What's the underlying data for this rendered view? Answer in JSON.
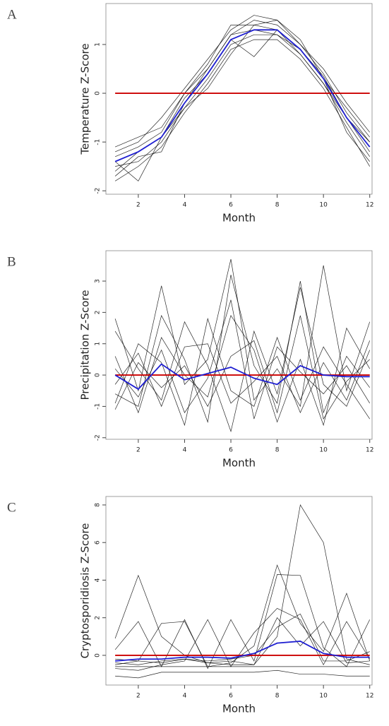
{
  "chart_data": [
    {
      "type": "line",
      "label": "A",
      "xlabel": "Month",
      "ylabel": "Temperature Z-Score",
      "x": [
        1,
        2,
        3,
        4,
        5,
        6,
        7,
        8,
        9,
        10,
        11,
        12
      ],
      "xlim": [
        0.6,
        12.1
      ],
      "xticks": [
        2,
        4,
        6,
        8,
        10,
        12
      ],
      "ylim": [
        -2.07,
        1.84
      ],
      "yticks": [
        -2,
        -1,
        0,
        1
      ],
      "series": [
        {
          "color": "#000000",
          "values": [
            -1.3,
            -1.1,
            -0.8,
            0.0,
            0.5,
            1.2,
            1.5,
            1.4,
            1.0,
            0.4,
            -0.4,
            -1.0
          ]
        },
        {
          "color": "#000000",
          "values": [
            -1.5,
            -1.4,
            -1.0,
            -0.3,
            0.3,
            1.0,
            1.2,
            1.2,
            0.8,
            0.2,
            -0.6,
            -1.3
          ]
        },
        {
          "color": "#000000",
          "values": [
            -1.2,
            -1.0,
            -0.5,
            0.1,
            0.7,
            1.3,
            1.6,
            1.5,
            1.1,
            0.3,
            -0.3,
            -0.9
          ]
        },
        {
          "color": "#000000",
          "values": [
            -1.8,
            -1.5,
            -1.1,
            -0.4,
            0.2,
            0.9,
            1.1,
            1.1,
            0.7,
            0.1,
            -0.7,
            -1.5
          ]
        },
        {
          "color": "#000000",
          "values": [
            -1.4,
            -1.8,
            -0.9,
            -0.1,
            0.4,
            1.1,
            0.75,
            1.3,
            0.9,
            0.35,
            -0.5,
            -1.2
          ]
        },
        {
          "color": "#000000",
          "values": [
            -1.1,
            -0.9,
            -0.7,
            0.0,
            0.6,
            1.4,
            1.4,
            1.3,
            0.8,
            0.2,
            -0.5,
            -1.0
          ]
        },
        {
          "color": "#000000",
          "values": [
            -1.6,
            -1.2,
            -0.9,
            -0.3,
            0.1,
            0.8,
            1.4,
            1.5,
            1.0,
            0.5,
            -0.2,
            -0.8
          ]
        },
        {
          "color": "#000000",
          "values": [
            -1.7,
            -1.3,
            -1.2,
            -0.2,
            0.5,
            1.2,
            1.3,
            1.2,
            0.9,
            0.3,
            -0.8,
            -1.4
          ]
        },
        {
          "color": "#cc0000",
          "values": [
            0,
            0,
            0,
            0,
            0,
            0,
            0,
            0,
            0,
            0,
            0,
            0
          ]
        },
        {
          "color": "#1f1fd1",
          "values": [
            -1.4,
            -1.2,
            -0.9,
            -0.2,
            0.4,
            1.1,
            1.3,
            1.3,
            0.9,
            0.3,
            -0.5,
            -1.1
          ]
        }
      ]
    },
    {
      "type": "line",
      "label": "B",
      "xlabel": "Month",
      "ylabel": "Precipitation Z-Score",
      "x": [
        1,
        2,
        3,
        4,
        5,
        6,
        7,
        8,
        9,
        10,
        11,
        12
      ],
      "xlim": [
        0.6,
        12.1
      ],
      "xticks": [
        2,
        4,
        6,
        8,
        10,
        12
      ],
      "ylim": [
        -2.05,
        3.97
      ],
      "yticks": [
        -2,
        -1,
        0,
        1,
        2,
        3
      ],
      "series": [
        {
          "color": "#000000",
          "values": [
            1.8,
            -0.5,
            2.85,
            -0.3,
            0.5,
            3.7,
            -0.8,
            0.2,
            -1.0,
            3.5,
            -0.5,
            1.7
          ]
        },
        {
          "color": "#000000",
          "values": [
            -0.6,
            -1.0,
            1.9,
            0.5,
            -1.5,
            3.2,
            0.3,
            -0.9,
            3.0,
            -1.2,
            0.6,
            -0.4
          ]
        },
        {
          "color": "#000000",
          "values": [
            1.4,
            0.2,
            -0.8,
            1.7,
            0.3,
            -1.8,
            1.4,
            -0.6,
            2.8,
            -0.3,
            -1.0,
            0.8
          ]
        },
        {
          "color": "#000000",
          "values": [
            -0.9,
            1.0,
            0.4,
            -1.6,
            1.8,
            -0.5,
            -1.0,
            1.2,
            -0.8,
            0.9,
            -0.3,
            -1.4
          ]
        },
        {
          "color": "#000000",
          "values": [
            0.6,
            -1.2,
            1.2,
            0.0,
            -0.7,
            1.9,
            0.8,
            -1.5,
            0.5,
            -1.6,
            1.5,
            0.2
          ]
        },
        {
          "color": "#000000",
          "values": [
            -0.3,
            0.7,
            -1.0,
            0.9,
            1.0,
            -0.9,
            -0.2,
            0.6,
            -1.2,
            0.4,
            -0.8,
            1.1
          ]
        },
        {
          "color": "#000000",
          "values": [
            0.2,
            -0.7,
            0.8,
            -1.2,
            -0.1,
            2.4,
            -1.4,
            0.9,
            0.1,
            -0.6,
            0.3,
            -0.9
          ]
        },
        {
          "color": "#000000",
          "values": [
            -1.1,
            0.4,
            -0.4,
            0.3,
            -1.0,
            0.6,
            1.1,
            -1.2,
            1.9,
            -1.4,
            -0.2,
            0.5
          ]
        },
        {
          "color": "#cc0000",
          "values": [
            0,
            0,
            0,
            0,
            0,
            0,
            0,
            0,
            0,
            0,
            0,
            0
          ]
        },
        {
          "color": "#1f1fd1",
          "values": [
            0.0,
            -0.45,
            0.35,
            -0.15,
            0.05,
            0.25,
            -0.1,
            -0.3,
            0.3,
            0.0,
            -0.05,
            -0.05
          ]
        }
      ]
    },
    {
      "type": "line",
      "label": "C",
      "xlabel": "Month",
      "ylabel": "Cryptosporidiosis Z-Score",
      "x": [
        1,
        2,
        3,
        4,
        5,
        6,
        7,
        8,
        9,
        10,
        11,
        12
      ],
      "xlim": [
        0.6,
        12.1
      ],
      "xticks": [
        2,
        4,
        6,
        8,
        10,
        12
      ],
      "ylim": [
        -1.58,
        8.45
      ],
      "yticks": [
        0,
        2,
        4,
        6,
        8
      ],
      "series": [
        {
          "color": "#000000",
          "values": [
            0.9,
            4.25,
            1.0,
            0.0,
            -0.4,
            -0.5,
            -0.5,
            1.0,
            8.0,
            6.0,
            -0.2,
            -0.5
          ]
        },
        {
          "color": "#000000",
          "values": [
            -0.5,
            -0.3,
            1.7,
            1.8,
            -0.6,
            -0.4,
            0.5,
            4.8,
            1.7,
            0.2,
            3.3,
            -0.3
          ]
        },
        {
          "color": "#000000",
          "values": [
            0.3,
            1.8,
            -0.6,
            1.9,
            -0.7,
            1.9,
            -0.3,
            4.3,
            4.25,
            0.4,
            -0.6,
            1.9
          ]
        },
        {
          "color": "#000000",
          "values": [
            -0.7,
            -0.8,
            -0.5,
            -0.3,
            1.9,
            -0.6,
            1.2,
            2.5,
            1.9,
            -0.5,
            1.8,
            -0.2
          ]
        },
        {
          "color": "#000000",
          "values": [
            -1.1,
            -1.2,
            -0.9,
            -0.9,
            -0.9,
            -0.9,
            -0.9,
            -0.8,
            -1.0,
            -1.0,
            -1.1,
            -1.1
          ]
        },
        {
          "color": "#000000",
          "values": [
            -0.4,
            -0.5,
            -0.3,
            -0.2,
            -0.4,
            -0.3,
            -0.5,
            2.0,
            0.5,
            1.8,
            -0.4,
            -0.3
          ]
        },
        {
          "color": "#000000",
          "values": [
            -0.2,
            -0.3,
            -0.4,
            -0.2,
            -0.3,
            -0.2,
            0.0,
            1.5,
            2.2,
            -0.3,
            -0.3,
            0.2
          ]
        },
        {
          "color": "#000000",
          "values": [
            -0.6,
            -0.6,
            -0.6,
            -0.6,
            -0.6,
            -0.6,
            -0.6,
            -0.6,
            -0.6,
            -0.6,
            -0.6,
            -0.6
          ]
        },
        {
          "color": "#cc0000",
          "values": [
            0,
            0,
            0,
            0,
            0,
            0,
            0,
            0,
            0,
            0,
            0,
            0
          ]
        },
        {
          "color": "#1f1fd1",
          "values": [
            -0.3,
            -0.2,
            -0.2,
            -0.1,
            -0.1,
            -0.15,
            0.1,
            0.65,
            0.75,
            0.1,
            -0.1,
            -0.1
          ]
        }
      ]
    }
  ]
}
